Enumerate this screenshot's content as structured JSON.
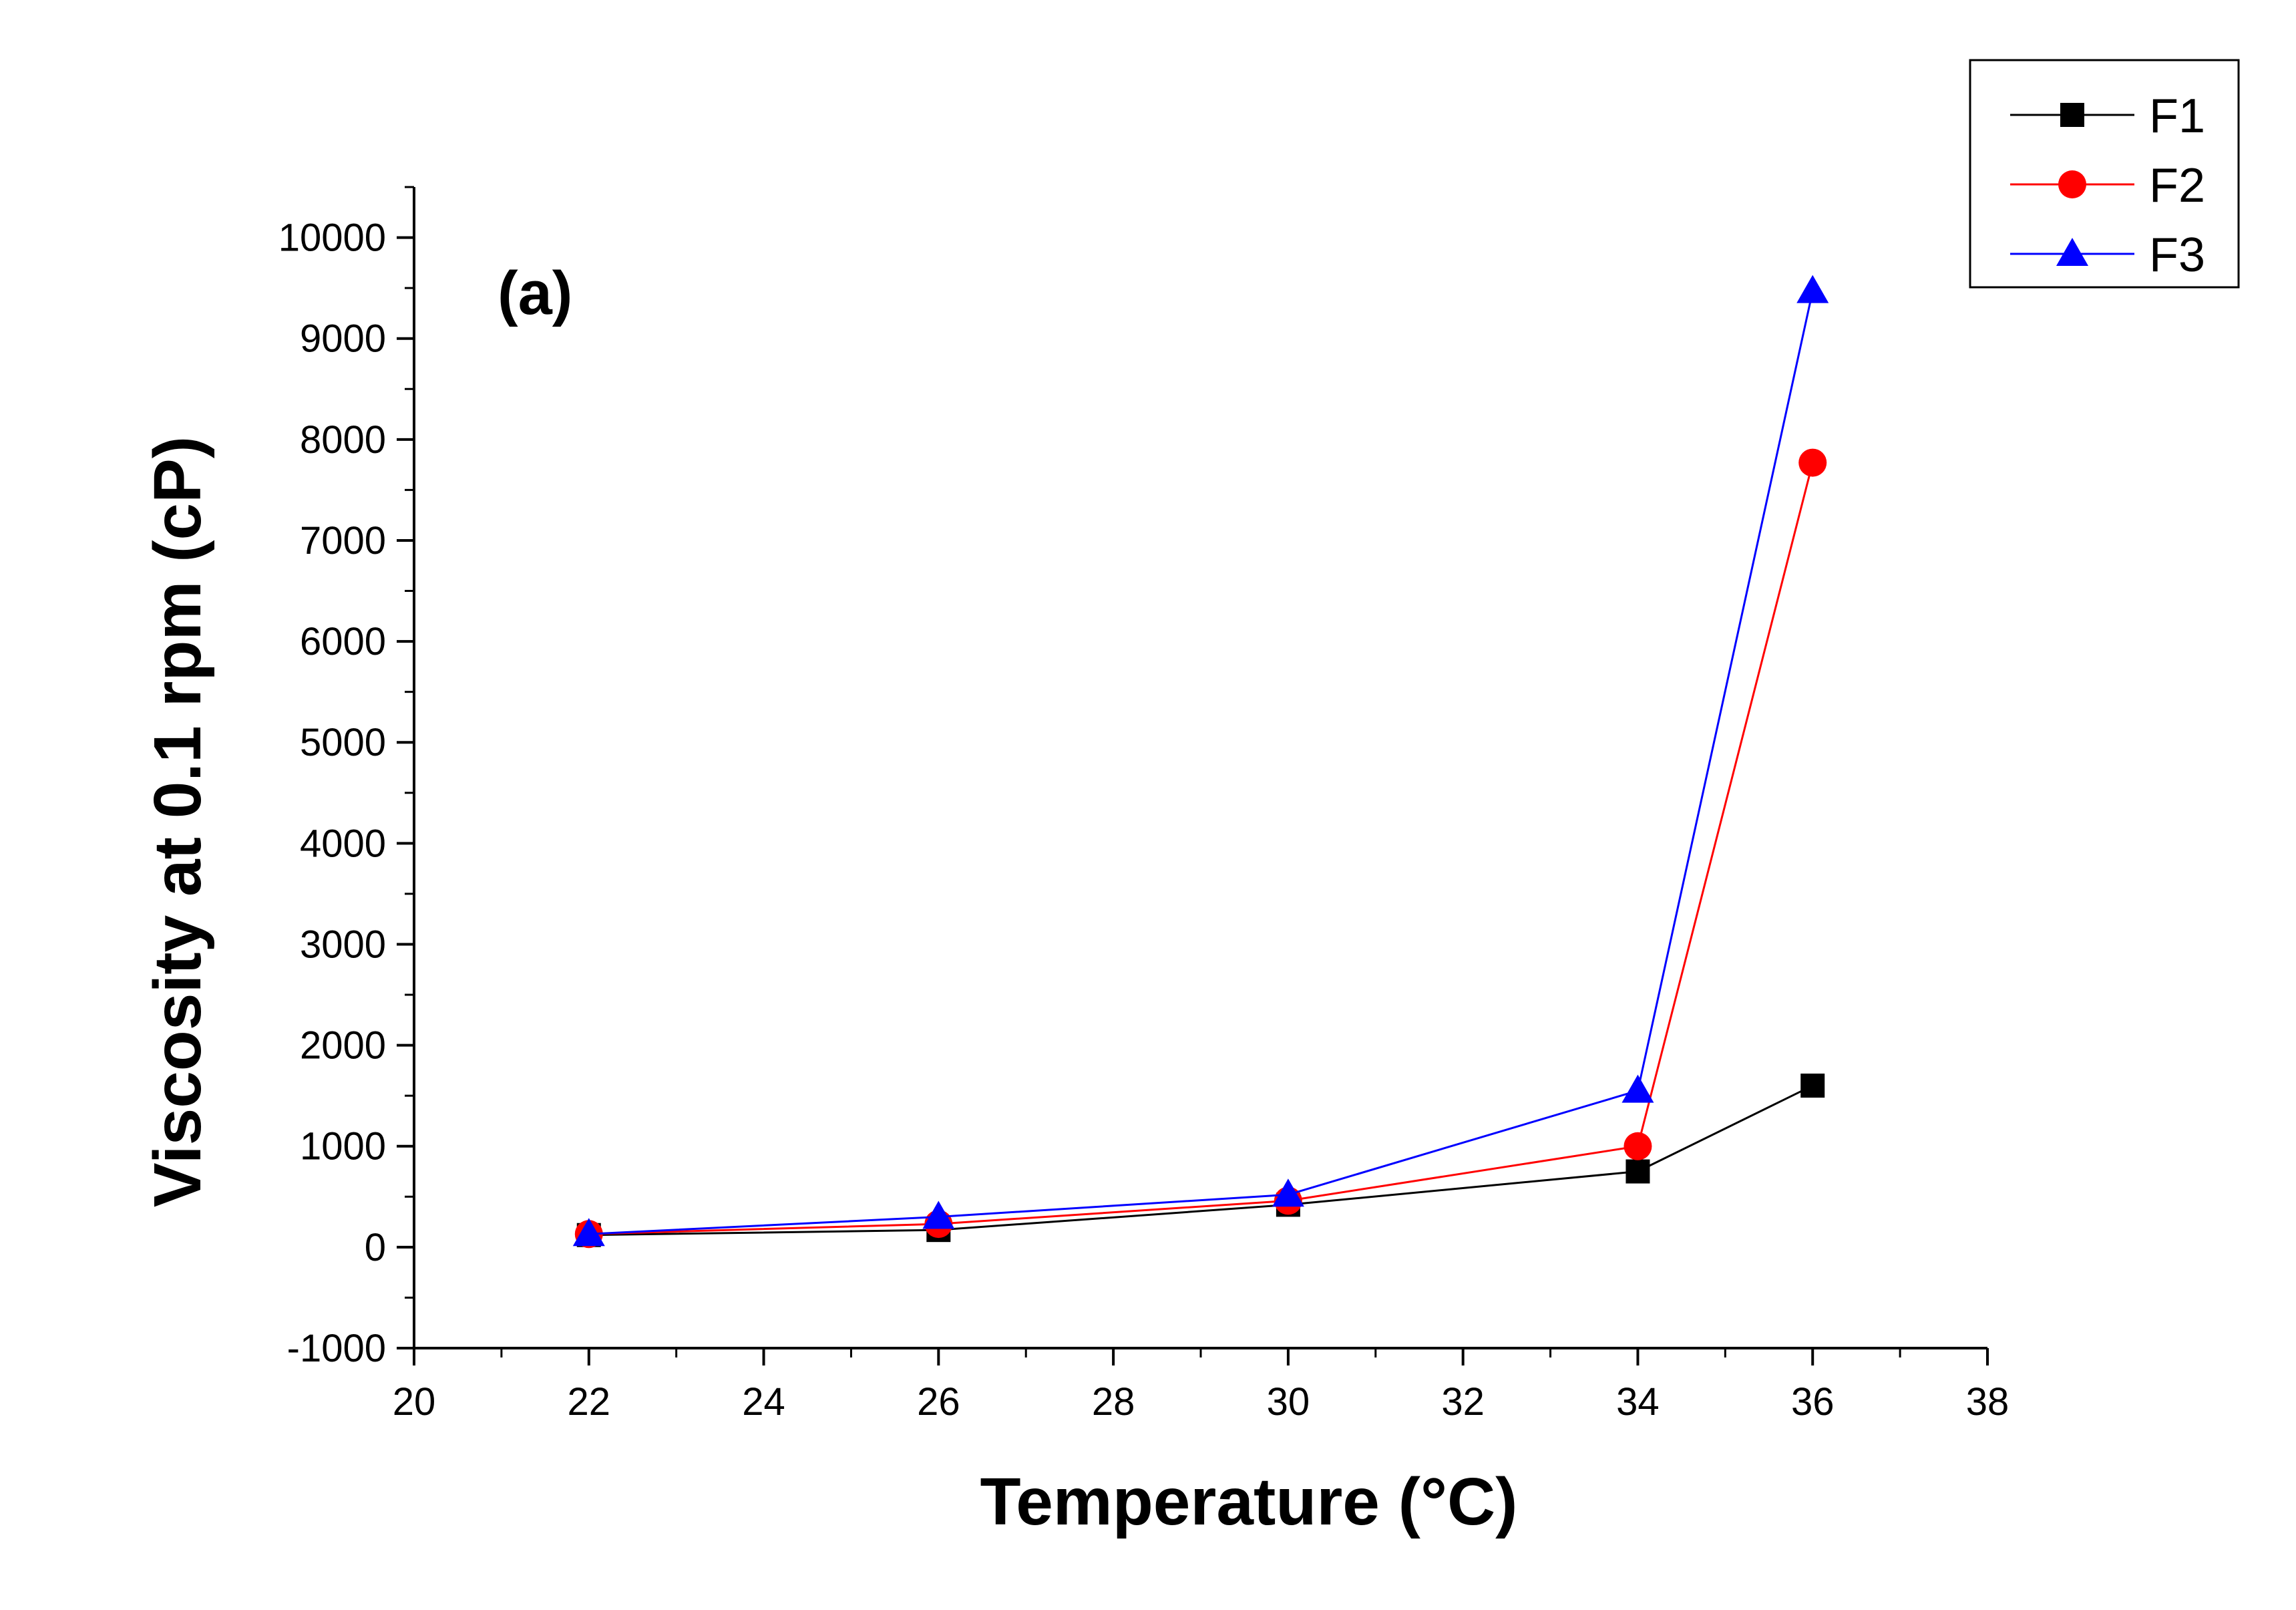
{
  "chart_data": {
    "type": "line",
    "panel_label": "(a)",
    "xlabel": "Temperature (°C)",
    "ylabel": "Viscosity at 0.1 rpm (cP)",
    "xlim": [
      20,
      38
    ],
    "ylim": [
      -1000,
      10500
    ],
    "x_ticks": [
      "20",
      "22",
      "24",
      "26",
      "28",
      "30",
      "32",
      "34",
      "36",
      "38"
    ],
    "y_ticks": [
      "-1000",
      "0",
      "1000",
      "2000",
      "3000",
      "4000",
      "5000",
      "6000",
      "7000",
      "8000",
      "9000",
      "10000"
    ],
    "x": [
      22,
      26,
      30,
      34,
      36
    ],
    "series": [
      {
        "name": "F1",
        "color": "#000000",
        "marker": "square",
        "values": [
          120,
          170,
          420,
          750,
          1600
        ]
      },
      {
        "name": "F2",
        "color": "#ff0000",
        "marker": "circle",
        "values": [
          130,
          230,
          460,
          1000,
          7770
        ]
      },
      {
        "name": "F3",
        "color": "#0000ff",
        "marker": "triangle",
        "values": [
          130,
          300,
          520,
          1550,
          9470
        ]
      }
    ],
    "legend_position": "top-right"
  }
}
